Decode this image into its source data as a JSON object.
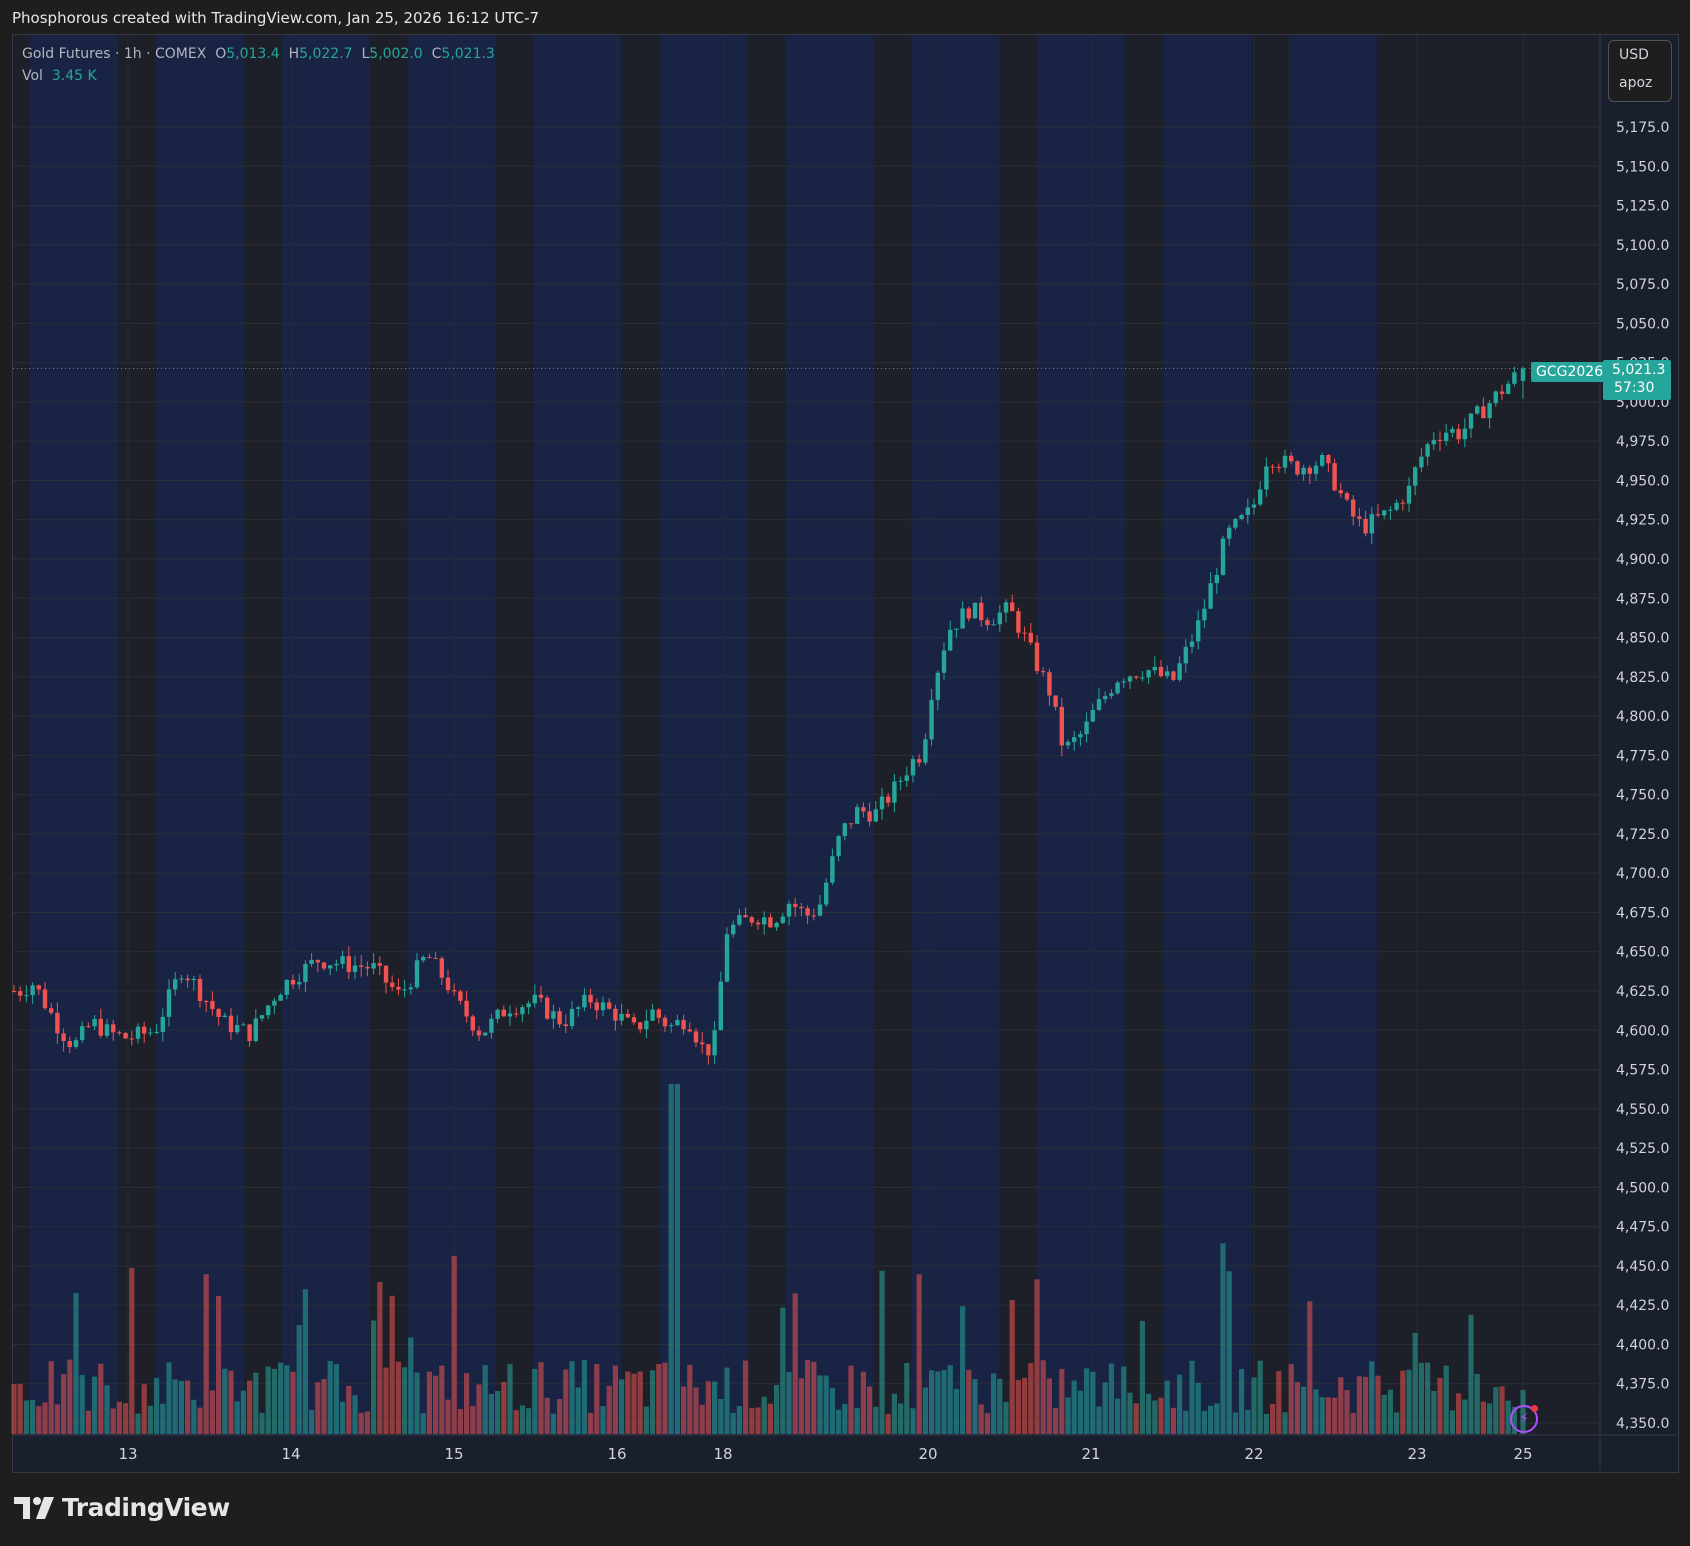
{
  "header": {
    "credit": "Phosphorous created with TradingView.com, Jan 25, 2026 16:12 UTC-7"
  },
  "legend": {
    "title": "Gold Futures · 1h · COMEX",
    "o_label": "O",
    "o_value": "5,013.4",
    "h_label": "H",
    "h_value": "5,022.7",
    "l_label": "L",
    "l_value": "5,002.0",
    "c_label": "C",
    "c_value": "5,021.3",
    "vol_label": "Vol",
    "vol_value": "3.45 K"
  },
  "price_scale": {
    "currency": "USD",
    "unit": "apoz"
  },
  "last_price": {
    "symbol": "GCG2026",
    "price": "5,021.3",
    "countdown": "57:30"
  },
  "brand": {
    "name": "TradingView"
  },
  "colors": {
    "up": "#26a69a",
    "down": "#ef5350",
    "background": "#1a1f2e",
    "session": "#1a2447",
    "offsession": "#1d2029"
  },
  "chart_data": {
    "type": "candlestick",
    "title": "Gold Futures · 1h · COMEX",
    "symbol": "GCG2026",
    "interval": "1h",
    "ylim": [
      4340,
      5200
    ],
    "y_ticks": [
      "4,350.0",
      "4,375.0",
      "4,400.0",
      "4,425.0",
      "4,450.0",
      "4,475.0",
      "4,500.0",
      "4,525.0",
      "4,550.0",
      "4,575.0",
      "4,600.0",
      "4,625.0",
      "4,650.0",
      "4,675.0",
      "4,700.0",
      "4,725.0",
      "4,750.0",
      "4,775.0",
      "4,800.0",
      "4,825.0",
      "4,850.0",
      "4,875.0",
      "4,900.0",
      "4,925.0",
      "4,950.0",
      "4,975.0",
      "5,000.0",
      "5,025.0",
      "5,050.0",
      "5,075.0",
      "5,100.0",
      "5,125.0",
      "5,150.0",
      "5,175.0"
    ],
    "x_ticks": [
      "13",
      "14",
      "15",
      "16",
      "18",
      "20",
      "21",
      "22",
      "23",
      "25"
    ],
    "close_path": [
      [
        "12 00",
        4625
      ],
      [
        "12 03",
        4630
      ],
      [
        "12 06",
        4615
      ],
      [
        "12 09",
        4600
      ],
      [
        "12 12",
        4590
      ],
      [
        "12 16",
        4605
      ],
      [
        "12 20",
        4598
      ],
      [
        "13 00",
        4595
      ],
      [
        "13 04",
        4600
      ],
      [
        "13 08",
        4640
      ],
      [
        "13 10",
        4628
      ],
      [
        "13 14",
        4605
      ],
      [
        "13 18",
        4598
      ],
      [
        "13 22",
        4625
      ],
      [
        "14 00",
        4633
      ],
      [
        "14 04",
        4645
      ],
      [
        "14 08",
        4642
      ],
      [
        "14 12",
        4640
      ],
      [
        "14 16",
        4622
      ],
      [
        "14 20",
        4648
      ],
      [
        "14 23",
        4630
      ],
      [
        "15 00",
        4620
      ],
      [
        "15 04",
        4598
      ],
      [
        "15 08",
        4615
      ],
      [
        "15 12",
        4618
      ],
      [
        "15 16",
        4605
      ],
      [
        "15 20",
        4620
      ],
      [
        "15 23",
        4612
      ],
      [
        "16 00",
        4610
      ],
      [
        "16 04",
        4600
      ],
      [
        "16 08",
        4612
      ],
      [
        "16 12",
        4602
      ],
      [
        "16 16",
        4608
      ],
      [
        "16 20",
        4585
      ],
      [
        "16 23",
        4598
      ],
      [
        "18 00",
        4662
      ],
      [
        "18 04",
        4668
      ],
      [
        "18 08",
        4673
      ],
      [
        "18 12",
        4670
      ],
      [
        "18 16",
        4682
      ],
      [
        "18 20",
        4673
      ],
      [
        "18 23",
        4678
      ],
      [
        "19 04",
        4725
      ],
      [
        "19 08",
        4740
      ],
      [
        "19 12",
        4738
      ],
      [
        "19 16",
        4752
      ],
      [
        "19 20",
        4770
      ],
      [
        "19 23",
        4778
      ],
      [
        "20 00",
        4808
      ],
      [
        "20 03",
        4855
      ],
      [
        "20 06",
        4868
      ],
      [
        "20 09",
        4862
      ],
      [
        "20 12",
        4868
      ],
      [
        "20 14",
        4852
      ],
      [
        "20 16",
        4833
      ],
      [
        "20 18",
        4815
      ],
      [
        "20 20",
        4778
      ],
      [
        "20 23",
        4790
      ],
      [
        "21 00",
        4800
      ],
      [
        "21 04",
        4825
      ],
      [
        "21 08",
        4830
      ],
      [
        "21 12",
        4822
      ],
      [
        "21 16",
        4860
      ],
      [
        "21 20",
        4915
      ],
      [
        "21 23",
        4928
      ],
      [
        "22 00",
        4935
      ],
      [
        "22 02",
        4966
      ],
      [
        "22 06",
        4958
      ],
      [
        "22 10",
        4962
      ],
      [
        "22 12",
        4948
      ],
      [
        "22 14",
        4930
      ],
      [
        "22 16",
        4920
      ],
      [
        "22 20",
        4930
      ],
      [
        "22 23",
        4945
      ],
      [
        "23 00",
        4960
      ],
      [
        "23 04",
        4978
      ],
      [
        "23 08",
        4982
      ],
      [
        "23 11",
        4980
      ],
      [
        "25 00",
        5021.3
      ]
    ],
    "last_bar": {
      "open": 5013.4,
      "high": 5022.7,
      "low": 5002.0,
      "close": 5021.3
    },
    "volume": {
      "last": "3.45 K",
      "spike_at": "16 22"
    }
  }
}
